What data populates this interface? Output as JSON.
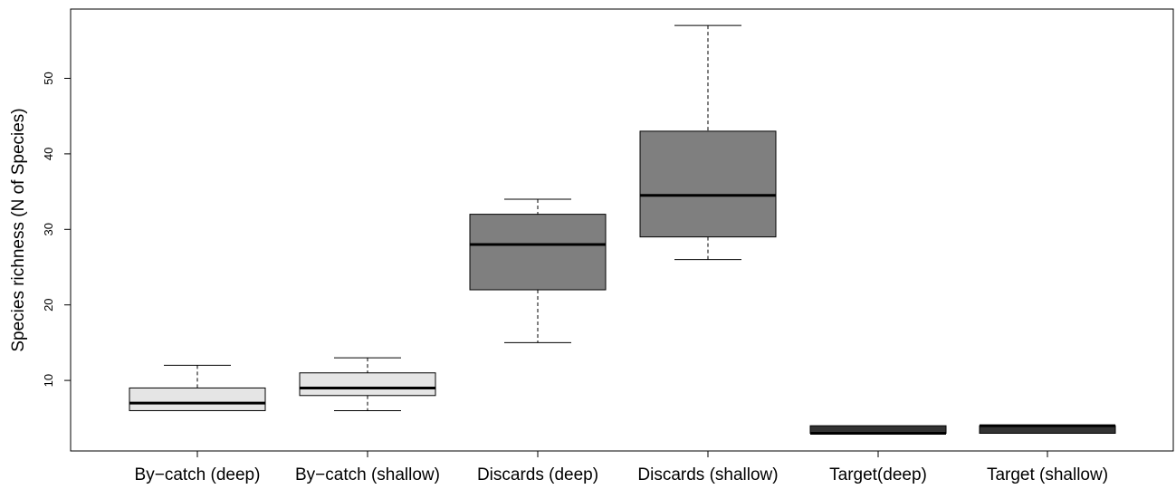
{
  "chart_data": {
    "type": "box",
    "title": "",
    "xlabel": "",
    "ylabel": "Species richness (N of Species)",
    "ylim": [
      0,
      58.5
    ],
    "yticks": [
      10,
      20,
      30,
      40,
      50
    ],
    "grid": false,
    "legend": "none",
    "categories": [
      "By−catch (deep)",
      "By−catch (shallow)",
      "Discards (deep)",
      "Discards (shallow)",
      "Target(deep)",
      "Target (shallow)"
    ],
    "boxes": [
      {
        "min": 6,
        "q1": 6,
        "median": 7,
        "q3": 9,
        "max": 12,
        "fill": "#e5e5e5"
      },
      {
        "min": 6,
        "q1": 8,
        "median": 9,
        "q3": 11,
        "max": 13,
        "fill": "#e5e5e5"
      },
      {
        "min": 15,
        "q1": 22,
        "median": 28,
        "q3": 32,
        "max": 34,
        "fill": "#7f7f7f"
      },
      {
        "min": 26,
        "q1": 29,
        "median": 34.5,
        "q3": 43,
        "max": 57,
        "fill": "#7f7f7f"
      },
      {
        "min": 3,
        "q1": 3,
        "median": 3,
        "q3": 4,
        "max": 4,
        "fill": "#333333"
      },
      {
        "min": 3,
        "q1": 3,
        "median": 4,
        "q3": 4,
        "max": 4,
        "fill": "#333333"
      }
    ]
  }
}
